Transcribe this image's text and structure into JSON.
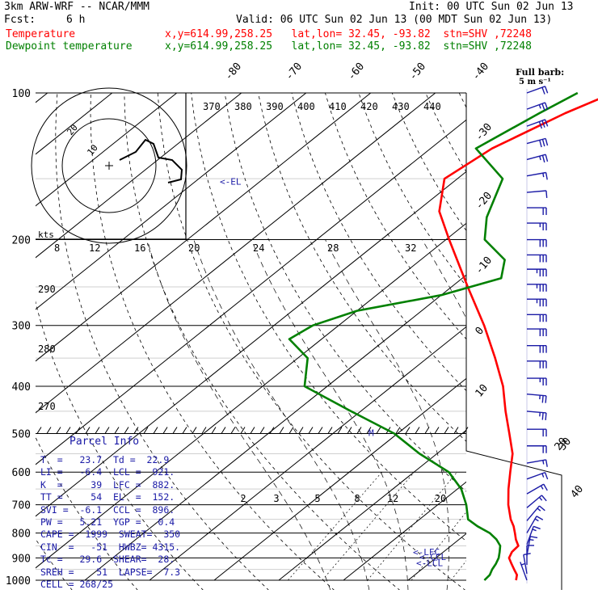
{
  "header": {
    "model": "3km ARW-WRF -- NCAR/MMM",
    "init": "Init: 00 UTC Sun 02 Jun 13",
    "fcst_label": "Fcst:",
    "fcst_value": "6 h",
    "valid": "Valid: 06 UTC Sun 02 Jun 13 (00 MDT Sun 02 Jun 13)",
    "temp_legend": "Temperature",
    "temp_info": "x,y=614.99,258.25   lat,lon= 32.45, -93.82  stn=SHV ,72248",
    "dew_legend": "Dewpoint temperature",
    "dew_info": "x,y=614.99,258.25   lat,lon= 32.45, -93.82  stn=SHV ,72248",
    "barb_note_1": "Full barb:",
    "barb_note_2": "5 m s⁻¹"
  },
  "colors": {
    "temperature": "#ff0000",
    "dewpoint": "#008000",
    "annotation": "#1a1aa6",
    "grid": "#000000"
  },
  "parcel_info": {
    "title": "Parcel Info",
    "rows": [
      "T  =   23.7  Td =  22.9",
      "LI =   -6.4  LCL =  921.",
      "K  =     39  LFC =  882.",
      "TT =     54  EL  =  152.",
      "SVI =  -6.1  CCL =  896.",
      "PW =   5.21  YGP =   0.4",
      "CAPE =  1999  SWEAT=  350",
      "CIN  =   -51  HWBZ= 4315.",
      "Tc =   29.6  SHEAR=  28.",
      "SREH =    51  LAPSE=  7.3",
      "CELL = 268/25"
    ]
  },
  "labels": {
    "el": "<-EL",
    "lfc": "<-LFC",
    "ccl": "<-CCL",
    "lcl": "<-LCL",
    "kts": "kts",
    "hodo_20": "20",
    "hodo_10": "10"
  },
  "chart_data": {
    "type": "line",
    "chart_kind": "skew-T log-P sounding",
    "y_axis": {
      "quantity": "pressure (hPa)",
      "scale": "log",
      "range": [
        1000,
        100
      ],
      "ticks": [
        100,
        200,
        300,
        400,
        500,
        600,
        700,
        800,
        900,
        1000
      ]
    },
    "isotherm_labels": [
      "-80",
      "-70",
      "-60",
      "-50",
      "-40",
      "-30",
      "-20",
      "-10",
      "0",
      "10",
      "20",
      "30",
      "40"
    ],
    "theta_labels_top": [
      "370",
      "380",
      "390",
      "400",
      "410",
      "420",
      "430",
      "440"
    ],
    "theta_labels_left": [
      "290",
      "280",
      "270"
    ],
    "hodograph_speed_labels": [
      "8",
      "12",
      "16",
      "20",
      "24",
      "28",
      "32"
    ],
    "mixing_ratio_labels": [
      "2",
      "3",
      "5",
      "8",
      "12",
      "20"
    ],
    "series": [
      {
        "name": "Temperature",
        "points": [
          [
            1000,
            26.7
          ],
          [
            975,
            25.8
          ],
          [
            950,
            24.3
          ],
          [
            925,
            22.8
          ],
          [
            900,
            21.3
          ],
          [
            875,
            20.6
          ],
          [
            850,
            20.4
          ],
          [
            825,
            18.8
          ],
          [
            800,
            17.4
          ],
          [
            775,
            15.9
          ],
          [
            750,
            14.1
          ],
          [
            700,
            10.9
          ],
          [
            650,
            7.9
          ],
          [
            600,
            4.9
          ],
          [
            550,
            1.7
          ],
          [
            500,
            -2.7
          ],
          [
            450,
            -7.6
          ],
          [
            400,
            -12.8
          ],
          [
            350,
            -19.5
          ],
          [
            300,
            -27.5
          ],
          [
            250,
            -37.5
          ],
          [
            200,
            -49.5
          ],
          [
            175,
            -56.5
          ],
          [
            150,
            -62
          ],
          [
            130,
            -60.5
          ],
          [
            110,
            -56
          ],
          [
            100,
            -52.5
          ]
        ]
      },
      {
        "name": "Dewpoint temperature",
        "points": [
          [
            1000,
            21.8
          ],
          [
            975,
            21.6
          ],
          [
            950,
            20.9
          ],
          [
            925,
            20.4
          ],
          [
            900,
            19.7
          ],
          [
            875,
            18.7
          ],
          [
            850,
            17.6
          ],
          [
            825,
            15.8
          ],
          [
            800,
            13.5
          ],
          [
            775,
            10.3
          ],
          [
            750,
            7.5
          ],
          [
            700,
            4.4
          ],
          [
            650,
            0.6
          ],
          [
            600,
            -4.6
          ],
          [
            550,
            -12.7
          ],
          [
            500,
            -20.5
          ],
          [
            450,
            -31.5
          ],
          [
            400,
            -43.5
          ],
          [
            350,
            -48.5
          ],
          [
            320,
            -55
          ],
          [
            300,
            -54
          ],
          [
            280,
            -50
          ],
          [
            260,
            -40
          ],
          [
            240,
            -34
          ],
          [
            220,
            -37
          ],
          [
            200,
            -44
          ],
          [
            180,
            -48
          ],
          [
            150,
            -53
          ],
          [
            130,
            -63
          ],
          [
            110,
            -60
          ],
          [
            100,
            -58
          ]
        ]
      }
    ],
    "wind_barbs": [
      {
        "p": 100,
        "spd": 20,
        "dir": 250
      },
      {
        "p": 108,
        "spd": 25,
        "dir": 250
      },
      {
        "p": 117,
        "spd": 30,
        "dir": 250
      },
      {
        "p": 127,
        "spd": 30,
        "dir": 255
      },
      {
        "p": 137,
        "spd": 25,
        "dir": 255
      },
      {
        "p": 148,
        "spd": 15,
        "dir": 260
      },
      {
        "p": 160,
        "spd": 10,
        "dir": 265
      },
      {
        "p": 172,
        "spd": 20,
        "dir": 270
      },
      {
        "p": 185,
        "spd": 25,
        "dir": 270
      },
      {
        "p": 200,
        "spd": 30,
        "dir": 270
      },
      {
        "p": 215,
        "spd": 30,
        "dir": 270
      },
      {
        "p": 230,
        "spd": 35,
        "dir": 270
      },
      {
        "p": 247,
        "spd": 35,
        "dir": 270
      },
      {
        "p": 265,
        "spd": 35,
        "dir": 270
      },
      {
        "p": 285,
        "spd": 30,
        "dir": 270
      },
      {
        "p": 305,
        "spd": 30,
        "dir": 270
      },
      {
        "p": 330,
        "spd": 30,
        "dir": 270
      },
      {
        "p": 355,
        "spd": 30,
        "dir": 270
      },
      {
        "p": 385,
        "spd": 25,
        "dir": 270
      },
      {
        "p": 415,
        "spd": 25,
        "dir": 275
      },
      {
        "p": 450,
        "spd": 25,
        "dir": 275
      },
      {
        "p": 490,
        "spd": 20,
        "dir": 270
      },
      {
        "p": 530,
        "spd": 20,
        "dir": 270
      },
      {
        "p": 575,
        "spd": 15,
        "dir": 260
      },
      {
        "p": 620,
        "spd": 15,
        "dir": 250
      },
      {
        "p": 665,
        "spd": 15,
        "dir": 240
      },
      {
        "p": 710,
        "spd": 15,
        "dir": 230
      },
      {
        "p": 755,
        "spd": 15,
        "dir": 220
      },
      {
        "p": 800,
        "spd": 15,
        "dir": 210
      },
      {
        "p": 845,
        "spd": 15,
        "dir": 200
      },
      {
        "p": 890,
        "spd": 15,
        "dir": 190
      },
      {
        "p": 930,
        "spd": 10,
        "dir": 180
      },
      {
        "p": 970,
        "spd": 10,
        "dir": 170
      },
      {
        "p": 1000,
        "spd": 5,
        "dir": 160
      }
    ],
    "levels_hpa": {
      "el": 152,
      "lfc": 882,
      "ccl": 896,
      "lcl": 921
    }
  }
}
